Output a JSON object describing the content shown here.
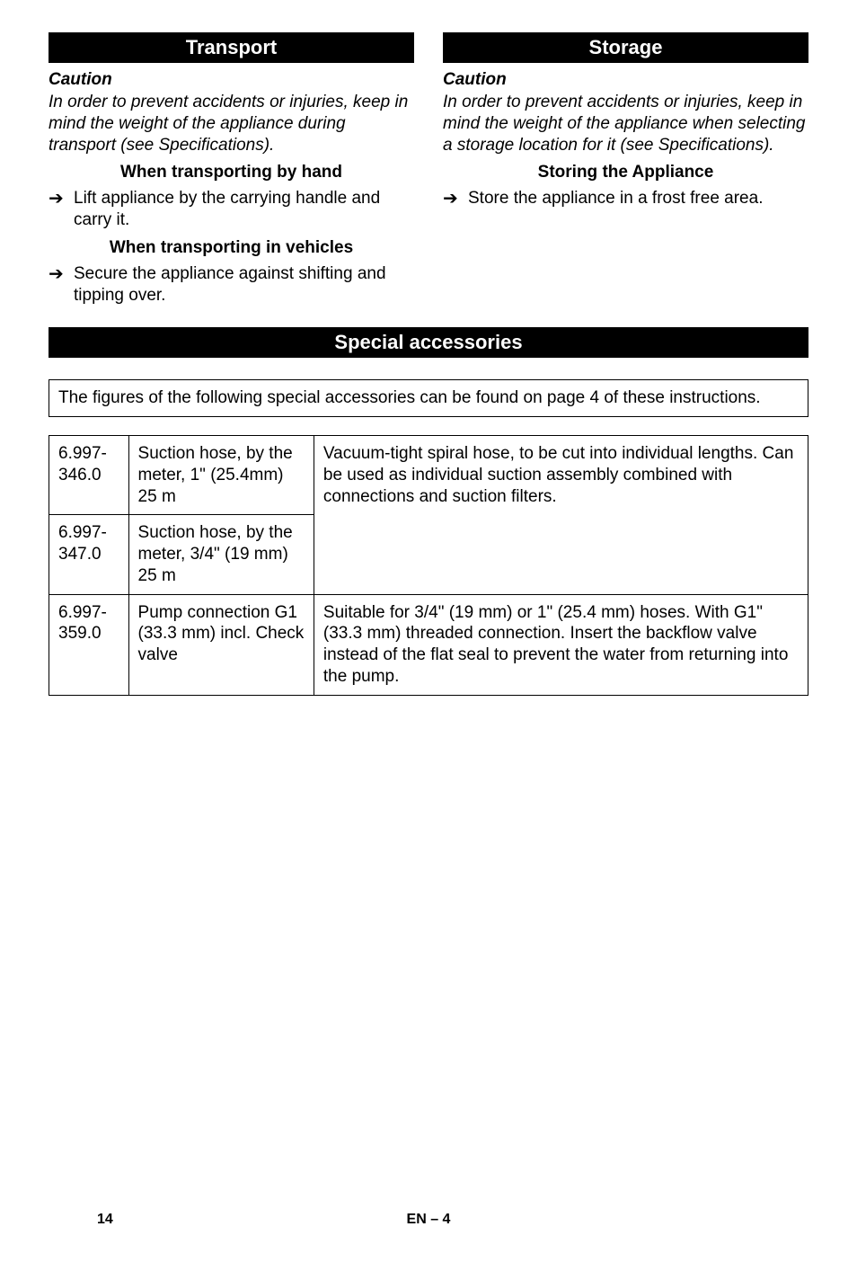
{
  "left": {
    "heading": "Transport",
    "caution_label": "Caution",
    "caution_body": "In order to prevent accidents or injuries, keep in mind the weight of the appliance during transport (see Specifications).",
    "sub1": "When transporting by hand",
    "bullet1": "Lift appliance by the carrying handle and carry it.",
    "sub2": "When transporting in vehicles",
    "bullet2": "Secure the appliance against shifting and tipping over."
  },
  "right": {
    "heading": "Storage",
    "caution_label": "Caution",
    "caution_body": "In order to prevent accidents or injuries, keep in mind the weight of the appliance when selecting a storage location for it (see Specifications).",
    "sub1": "Storing the Appliance",
    "bullet1": "Store the appliance in a frost free area."
  },
  "accessories": {
    "heading": "Special accessories",
    "intro": "The figures of the following special accessories can be found on page 4 of these instructions.",
    "rows": [
      {
        "code": "6.997-346.0",
        "name": "Suction hose, by the meter, 1\" (25.4mm) 25 m",
        "desc": "Vacuum-tight spiral hose, to be cut into individual lengths. Can be used as individual suction assembly combined with connections and suction filters."
      },
      {
        "code": "6.997-347.0",
        "name": "Suction hose, by the meter, 3/4\" (19 mm) 25 m",
        "desc": ""
      },
      {
        "code": "6.997-359.0",
        "name": "Pump connection G1 (33.3 mm) incl. Check valve",
        "desc": "Suitable for 3/4\" (19 mm) or 1\" (25.4 mm) hoses. With G1\" (33.3 mm) threaded connection. Insert the backflow valve instead of the flat seal to prevent the water from returning into the pump."
      }
    ]
  },
  "footer": {
    "page": "14",
    "center": "EN – 4"
  },
  "colors": {
    "black": "#000000",
    "white": "#ffffff"
  }
}
